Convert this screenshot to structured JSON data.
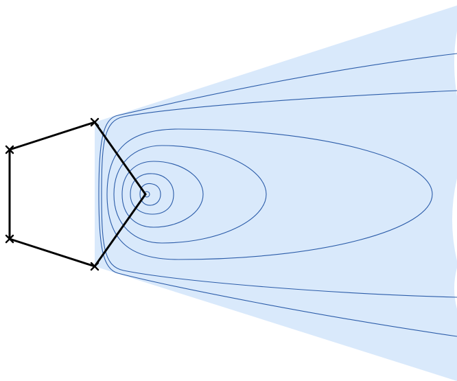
{
  "diagram": {
    "colors": {
      "background": "#ffffff",
      "region_fill": "#d9e9fb",
      "contour": "#2a5ba8",
      "polygon": "#000000"
    },
    "polygon_vertices": [
      "v1",
      "v2",
      "v3",
      "v4",
      "v5",
      "v6"
    ],
    "vertex_marker": "x-mark",
    "contour_count": 10
  }
}
